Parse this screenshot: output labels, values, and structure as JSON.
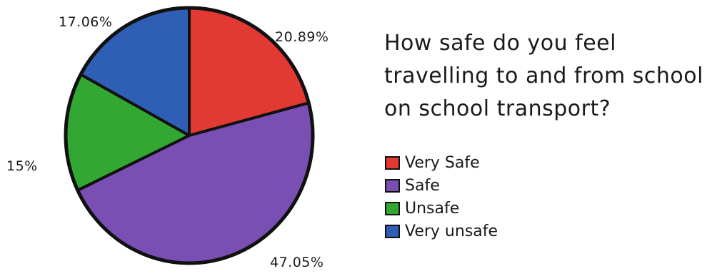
{
  "chart_data": {
    "type": "pie",
    "title": "How safe do you feel travelling to and from school on school transport?",
    "categories": [
      "Very Safe",
      "Safe",
      "Unsafe",
      "Very unsafe"
    ],
    "values": [
      20.89,
      47.05,
      15,
      17.06
    ],
    "labels": [
      "20.89%",
      "47.05%",
      "15%",
      "17.06%"
    ],
    "colors": [
      "#e23a32",
      "#7a4fb3",
      "#32a832",
      "#2f5fb5"
    ],
    "legend_position": "right"
  }
}
